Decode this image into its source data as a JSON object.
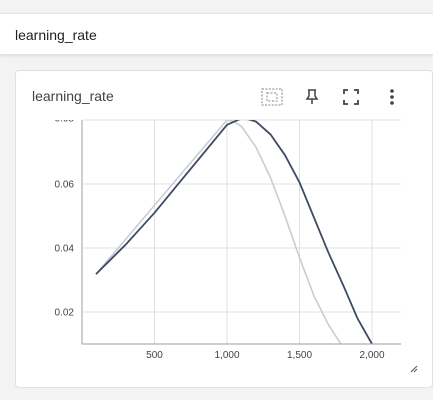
{
  "section": {
    "title": "learning_rate"
  },
  "card": {
    "title": "learning_rate",
    "toolbar": {
      "fit_domain_icon": "fit-domain-icon",
      "pin_icon": "pin-icon",
      "fullscreen_icon": "fullscreen-icon",
      "more_icon": "more-vert-icon"
    }
  },
  "colors": {
    "smoothed_line": "#3f4b63",
    "raw_line": "#c8ccd6",
    "grid": "#e0e0e0",
    "axis": "#9e9e9e"
  },
  "chart_data": {
    "type": "line",
    "xlim": [
      0,
      2200
    ],
    "ylim": [
      0.01,
      0.08
    ],
    "x_ticks": [
      500,
      1000,
      1500,
      2000
    ],
    "x_tick_labels": [
      "500",
      "1,000",
      "1,500",
      "2,000"
    ],
    "y_ticks": [
      0.02,
      0.04,
      0.06
    ],
    "y_tick_labels": [
      "0.02",
      "0.04",
      "0.06"
    ],
    "top_partial_label": "0.08",
    "grid": true,
    "series": [
      {
        "role": "raw",
        "x": [
          100,
          1000,
          1050,
          1100,
          1200,
          1300,
          1400,
          1500,
          1600,
          1700,
          1800
        ],
        "y": [
          0.032,
          0.08,
          0.0795,
          0.078,
          0.0715,
          0.062,
          0.05,
          0.037,
          0.025,
          0.016,
          0.009
        ]
      },
      {
        "role": "smoothed",
        "x": [
          100,
          200,
          300,
          400,
          500,
          600,
          700,
          800,
          900,
          1000,
          1050,
          1100,
          1150,
          1200,
          1300,
          1400,
          1500,
          1600,
          1700,
          1800,
          1900,
          2000
        ],
        "y": [
          0.032,
          0.0365,
          0.041,
          0.046,
          0.051,
          0.0565,
          0.062,
          0.0675,
          0.073,
          0.0785,
          0.0795,
          0.0805,
          0.0802,
          0.0795,
          0.0755,
          0.069,
          0.0605,
          0.0495,
          0.0385,
          0.0285,
          0.018,
          0.01
        ]
      }
    ]
  }
}
